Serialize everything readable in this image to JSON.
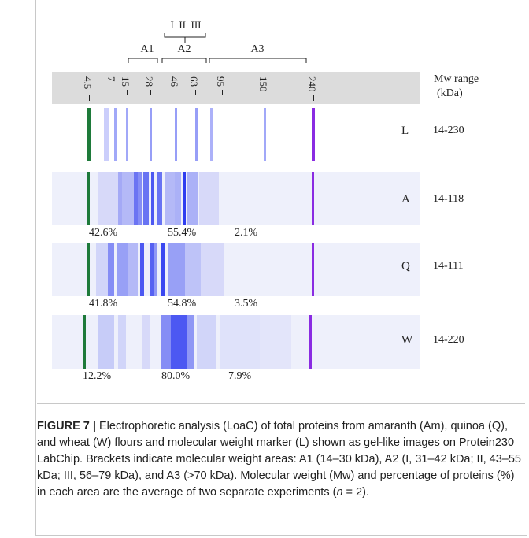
{
  "figure": {
    "roman_labels": "I  II  III",
    "areas": [
      "A1",
      "A2",
      "A3"
    ],
    "mw_markers": [
      "4.5",
      "7",
      "15",
      "28",
      "46",
      "63",
      "95",
      "150",
      "240"
    ],
    "mw_range_header_line1": "Mw range",
    "mw_range_header_line2": "(kDa)",
    "lanes": [
      {
        "id": "L",
        "range": "14-230",
        "percentages": []
      },
      {
        "id": "A",
        "range": "14-118",
        "percentages": [
          "42.6%",
          "55.4%",
          "2.1%"
        ]
      },
      {
        "id": "Q",
        "range": "14-111",
        "percentages": [
          "41.8%",
          "54.8%",
          "3.5%"
        ]
      },
      {
        "id": "W",
        "range": "14-220",
        "percentages": [
          "12.2%",
          "80.0%",
          "7.9%"
        ]
      }
    ],
    "colors": {
      "lane_bg": "#eef0fb",
      "band_blue": "#2f3df0",
      "lower_marker": "#1e7a3a",
      "upper_marker": "#8a2be2"
    }
  },
  "caption": {
    "label": "FIGURE 7 |",
    "text_part1": " Electrophoretic analysis (LoaC) of total proteins from amaranth (Am), quinoa (Q), and wheat (W) flours and molecular weight marker (L) shown as gel-like images on Protein230 LabChip. Brackets indicate molecular weight areas: A1 (14–30 kDa), A2 (I, 31–42 kDa; II, 43–55 kDa; III, 56–79 kDa), and A3 (>70 kDa). Molecular weight (Mw) and percentage of proteins (%) in each area are the average of two separate experiments (",
    "n_italic": "n",
    "text_part2": " = 2)."
  }
}
